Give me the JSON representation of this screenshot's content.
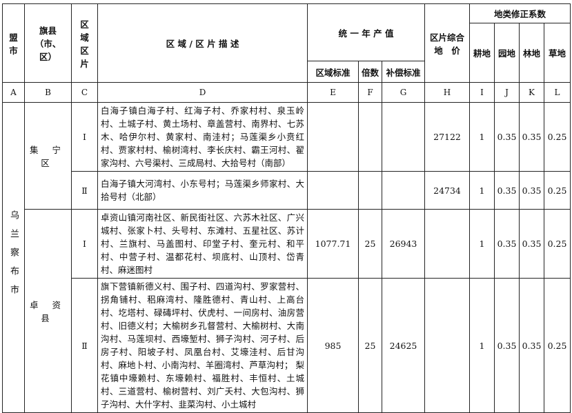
{
  "header": {
    "col_a": "盟市",
    "col_b": "旗县（市、区）",
    "col_c": "区域区片",
    "col_d": "区 域 / 区 片 描 述",
    "col_efg": "统 一 年 产 值",
    "col_e": "区域标准",
    "col_f": "倍数",
    "col_g": "补偿标准",
    "col_h": "区片综合地　价",
    "col_ijkl": "地类修正系数",
    "col_i": "耕地",
    "col_j": "园地",
    "col_k": "林地",
    "col_l": "草地"
  },
  "letters": [
    "A",
    "B",
    "C",
    "D",
    "E",
    "F",
    "G",
    "H",
    "I",
    "J",
    "K",
    "L"
  ],
  "city": "乌兰察布市",
  "counties": [
    {
      "name": "集 宁 区",
      "rows": [
        {
          "zone": "Ⅰ",
          "desc": "白海子镇白海子村、红海子村、乔家村村、泉玉岭村、土城子村、黄土场村、章盖营村、南界村、七苏木、哈伊尔村、黄家村、南洼村；马莲渠乡小贲红村、贾家村村、榆树湾村、李长庆村、霸王河村、翟家沟村、六号渠村、三成局村、大拾号村（南部）",
          "e": "",
          "f": "",
          "g": "",
          "h": "27122",
          "i": "1",
          "j": "0.35",
          "k": "0.35",
          "l": "0.25"
        },
        {
          "zone": "Ⅱ",
          "desc": "白海子镇大河湾村、小东号村；马莲渠乡师家村、大拾号村（北部）",
          "e": "",
          "f": "",
          "g": "",
          "h": "24734",
          "i": "1",
          "j": "0.35",
          "k": "0.35",
          "l": "0.25"
        }
      ]
    },
    {
      "name": "卓 资 县",
      "rows": [
        {
          "zone": "Ⅰ",
          "desc": "卓资山镇河南社区、新民街社区、六苏木社区、广兴城村、张家卜村、头号村、东滩村、五星社区、苏计村、兰旗村、马盖图村、印堂子村、奎元村、和平村、中营子村、温都花村、坝底村、山顶村、岱青村、麻迷图村",
          "e": "1077.71",
          "f": "25",
          "g": "26943",
          "h": "",
          "i": "1",
          "j": "0.35",
          "k": "0.35",
          "l": "0.25"
        },
        {
          "zone": "Ⅱ",
          "desc": "旗下营镇新德义村、围子村、四道沟村、罗家营村、拐角铺村、稆麻湾村、隆胜德村、青山村、上高台村、圪塔村、碌碡坪村、伏虎村、一间房村、油房营村、旧德义村；大榆树乡孔督营村、大榆树村、大南沟村、马莲坝村、西壕堑村、狮子沟村、河子村、后房子村、阳坡子村、凤凰台村、艾壕洼村、后甘沟村、麻地卜村、小南沟村、羊圈湾村、芦草沟村； 梨花镇中壕赖村、东壕赖村、福胜村、丰恒村、土城村、三道营村、榆树营村、刘广夭村、大包沟村、狮子沟村、大什字村、韭菜沟村、小土城村",
          "e": "985",
          "f": "25",
          "g": "24625",
          "h": "",
          "i": "1",
          "j": "0.35",
          "k": "0.35",
          "l": "0.25"
        }
      ]
    }
  ]
}
